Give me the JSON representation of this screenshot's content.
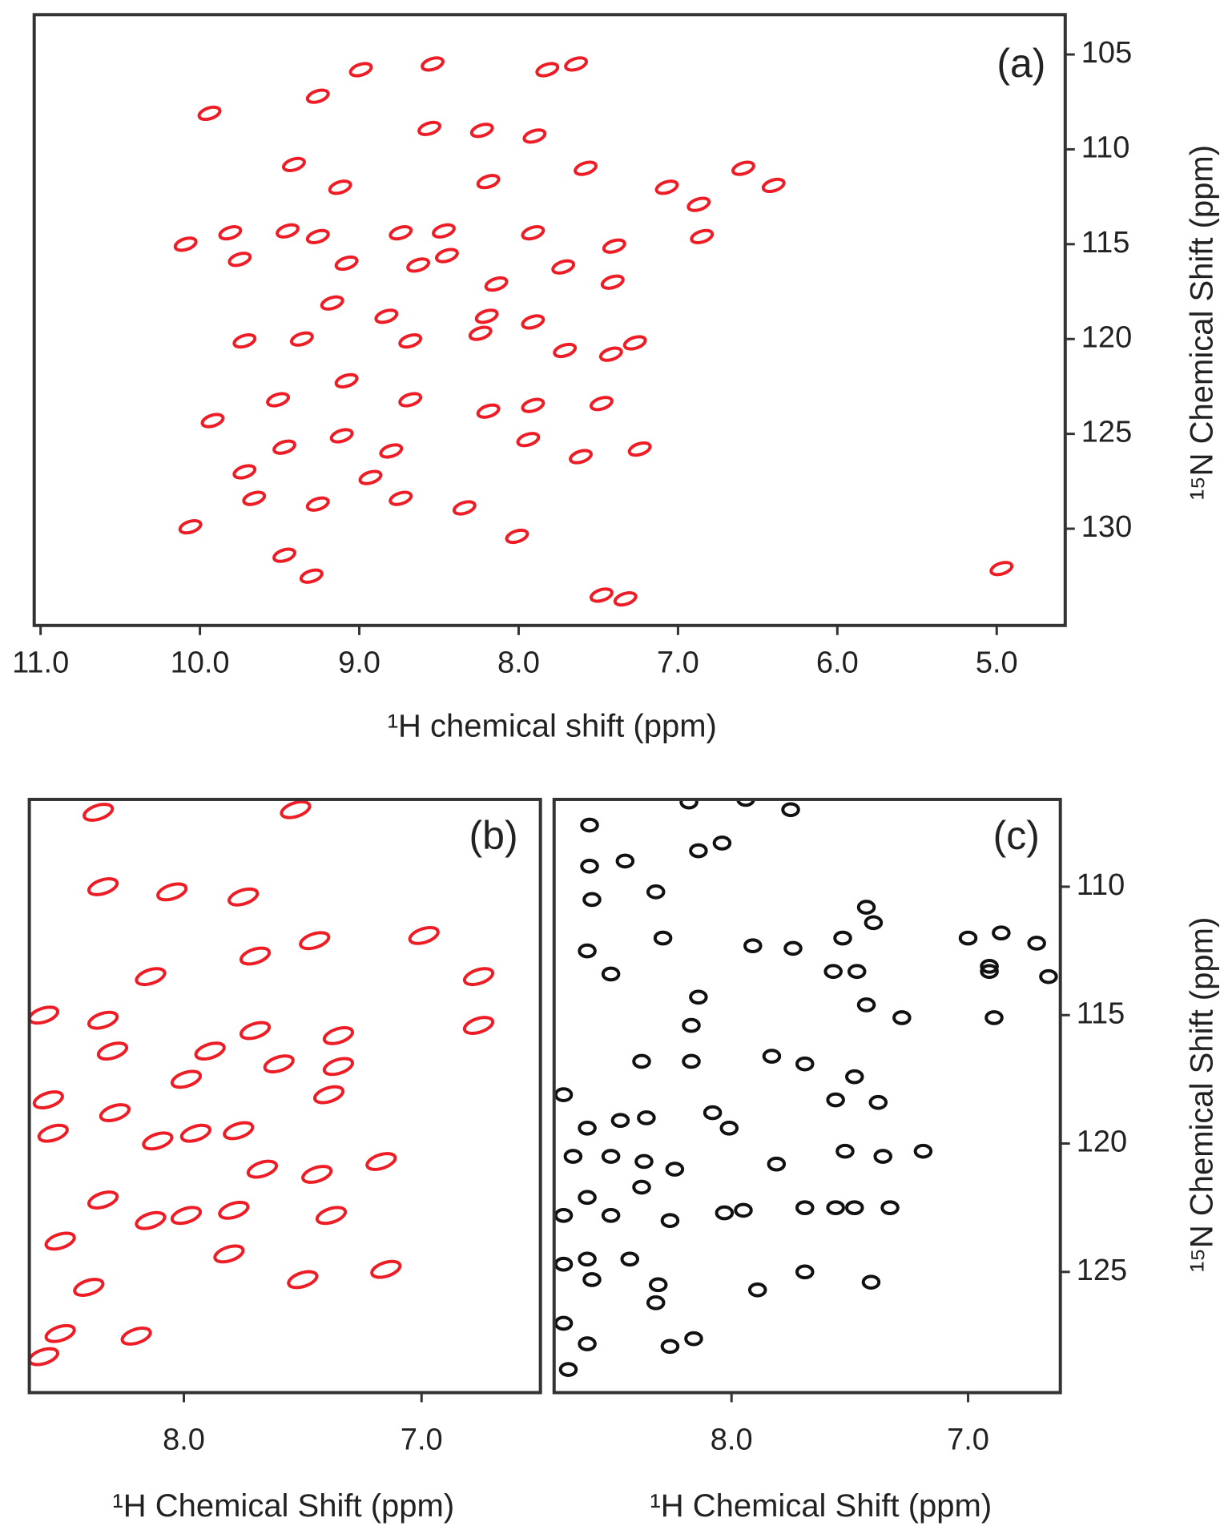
{
  "chart_data": [
    {
      "type": "scatter",
      "label": "(a)",
      "xlabel": "¹H chemical shift (ppm)",
      "ylabel": "¹⁵N Chemical Shift (ppm)",
      "color": "#ee1c24",
      "xlim": [
        11.04,
        4.57
      ],
      "ylim": [
        102.9,
        135.1
      ],
      "xticks": [
        {
          "value": 11.0,
          "label": "11.0"
        },
        {
          "value": 10.0,
          "label": "10.0"
        },
        {
          "value": 9.0,
          "label": "9.0"
        },
        {
          "value": 8.0,
          "label": "8.0"
        },
        {
          "value": 7.0,
          "label": "7.0"
        },
        {
          "value": 6.0,
          "label": "6.0"
        },
        {
          "value": 5.0,
          "label": "5.0"
        }
      ],
      "yticks": [
        105,
        110,
        115,
        120,
        125,
        130
      ],
      "x": [
        9.94,
        8.99,
        8.54,
        7.64,
        7.82,
        9.26,
        8.56,
        8.23,
        7.9,
        9.41,
        9.12,
        8.19,
        7.58,
        7.07,
        6.87,
        6.59,
        6.4,
        10.09,
        9.81,
        9.75,
        9.45,
        9.26,
        9.08,
        8.74,
        8.47,
        8.45,
        8.63,
        7.91,
        7.4,
        6.85,
        7.72,
        7.41,
        8.14,
        9.17,
        8.83,
        9.36,
        8.68,
        9.72,
        8.24,
        7.91,
        7.71,
        7.42,
        9.08,
        9.51,
        8.68,
        8.19,
        7.91,
        7.48,
        9.92,
        9.47,
        9.11,
        8.8,
        7.94,
        7.61,
        7.24,
        9.66,
        9.26,
        8.74,
        8.34,
        10.06,
        9.47,
        9.3,
        8.01,
        7.48,
        7.33,
        4.97,
        9.72,
        8.93,
        7.27,
        8.2
      ],
      "values": [
        108.1,
        105.8,
        105.5,
        105.5,
        105.8,
        107.2,
        108.9,
        109.0,
        109.3,
        110.8,
        112.0,
        111.7,
        111.0,
        112.0,
        112.9,
        111.0,
        111.9,
        115.0,
        114.4,
        115.8,
        114.3,
        114.6,
        116.0,
        114.4,
        114.3,
        115.6,
        116.1,
        114.4,
        115.1,
        114.6,
        116.2,
        117.0,
        117.1,
        118.1,
        118.8,
        120.0,
        120.1,
        120.1,
        119.7,
        119.1,
        120.6,
        120.8,
        122.2,
        123.2,
        123.2,
        123.8,
        123.5,
        123.4,
        124.3,
        125.7,
        125.1,
        125.9,
        125.3,
        126.2,
        125.8,
        128.4,
        128.7,
        128.4,
        128.9,
        129.9,
        131.4,
        132.5,
        130.4,
        133.5,
        133.7,
        132.1,
        127.0,
        127.3,
        120.2,
        118.8
      ]
    },
    {
      "type": "scatter",
      "label": "(b)",
      "xlabel": "¹H Chemical Shift (ppm)",
      "color": "#ee1c24",
      "xlim": [
        8.65,
        6.5
      ],
      "ylim": [
        106.6,
        129.7
      ],
      "xticks": [
        {
          "value": 8.0,
          "label": "8.0"
        },
        {
          "value": 7.0,
          "label": "7.0"
        }
      ],
      "x": [
        8.36,
        7.53,
        8.34,
        8.05,
        7.75,
        7.7,
        7.45,
        6.99,
        6.76,
        8.14,
        8.59,
        8.34,
        8.3,
        7.7,
        7.89,
        7.35,
        7.35,
        6.76,
        7.6,
        7.99,
        7.39,
        8.57,
        8.29,
        8.55,
        7.95,
        7.77,
        8.11,
        7.67,
        8.34,
        7.44,
        7.17,
        7.79,
        7.99,
        8.14,
        7.38,
        8.52,
        7.81,
        7.5,
        7.15,
        8.4,
        8.52,
        8.2,
        8.59
      ],
      "values": [
        107.1,
        107.0,
        110.0,
        110.2,
        110.4,
        112.7,
        112.1,
        111.9,
        113.5,
        113.5,
        115.0,
        115.2,
        116.4,
        115.6,
        116.4,
        115.8,
        117.0,
        115.4,
        116.9,
        117.5,
        118.1,
        118.3,
        118.8,
        119.6,
        119.6,
        119.5,
        119.9,
        121.0,
        122.2,
        121.2,
        120.7,
        122.6,
        122.8,
        123.0,
        122.8,
        123.8,
        124.3,
        125.3,
        124.9,
        125.6,
        127.4,
        127.5,
        128.3
      ]
    },
    {
      "type": "scatter",
      "label": "(c)",
      "xlabel": "¹H Chemical Shift (ppm)",
      "ylabel": "¹⁵N Chemical Shift (ppm)",
      "color": "#111111",
      "xlim": [
        8.75,
        6.61
      ],
      "ylim": [
        106.6,
        129.7
      ],
      "xticks": [
        {
          "value": 8.0,
          "label": "8.0"
        },
        {
          "value": 7.0,
          "label": "7.0"
        }
      ],
      "yticks": [
        110,
        115,
        120,
        125
      ],
      "x": [
        8.6,
        8.18,
        7.94,
        7.75,
        8.6,
        8.45,
        8.32,
        8.59,
        8.04,
        8.14,
        7.43,
        7.53,
        7.4,
        7.0,
        6.86,
        6.71,
        6.66,
        6.91,
        7.57,
        7.47,
        8.61,
        8.51,
        8.29,
        7.91,
        7.74,
        8.14,
        7.43,
        8.17,
        7.28,
        6.89,
        6.91,
        8.38,
        8.17,
        7.83,
        7.69,
        7.48,
        8.71,
        8.61,
        8.47,
        8.36,
        8.08,
        8.01,
        7.56,
        7.38,
        8.67,
        8.51,
        8.37,
        8.24,
        8.38,
        8.61,
        8.51,
        8.26,
        8.03,
        7.95,
        7.81,
        7.69,
        7.56,
        7.48,
        7.33,
        7.52,
        7.36,
        7.19,
        8.61,
        8.43,
        8.59,
        8.31,
        7.89,
        7.69,
        7.41,
        8.71,
        8.32,
        8.71,
        8.16,
        8.26,
        8.61,
        8.69,
        8.71
      ],
      "values": [
        107.6,
        106.7,
        106.6,
        107.0,
        109.2,
        109.0,
        110.2,
        110.5,
        108.3,
        108.6,
        110.8,
        112.0,
        111.4,
        112.0,
        111.8,
        112.2,
        113.5,
        113.3,
        113.3,
        113.3,
        112.5,
        113.4,
        112.0,
        112.3,
        112.4,
        114.3,
        114.6,
        115.4,
        115.1,
        115.1,
        113.1,
        116.8,
        116.8,
        116.6,
        116.9,
        117.4,
        118.1,
        119.4,
        119.1,
        119.0,
        118.8,
        119.4,
        118.3,
        118.4,
        120.5,
        120.5,
        120.7,
        121.0,
        121.7,
        122.1,
        122.8,
        123.0,
        122.7,
        122.6,
        120.8,
        122.5,
        122.5,
        122.5,
        122.5,
        120.3,
        120.5,
        120.3,
        124.5,
        124.5,
        125.3,
        125.5,
        125.7,
        125.0,
        125.4,
        124.7,
        126.2,
        127.0,
        127.6,
        127.9,
        127.8,
        128.8,
        122.8
      ]
    }
  ]
}
